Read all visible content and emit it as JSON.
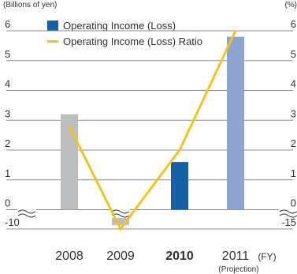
{
  "chart_data": {
    "type": "bar+line",
    "y_left_unit": "(Billions of yen)",
    "y_right_unit": "(%)",
    "x_unit": "(FY)",
    "categories": [
      "2008",
      "2009",
      "2010",
      "2011"
    ],
    "category_notes": [
      "",
      "",
      "",
      "(Projection)"
    ],
    "highlight_category": "2010",
    "y_left_ticks": [
      "6",
      "5",
      "4",
      "3",
      "2",
      "1",
      "0",
      "-10"
    ],
    "y_right_ticks": [
      "6",
      "5",
      "4",
      "3",
      "2",
      "1",
      "0",
      "-15"
    ],
    "series": [
      {
        "name": "Operating Income (Loss)",
        "type": "bar",
        "axis": "left",
        "values": [
          3.2,
          -8.0,
          1.6,
          5.8
        ],
        "colors": [
          "#bcbec0",
          "#bcbec0",
          "#1560a5",
          "#8ea3cf"
        ]
      },
      {
        "name": "Operating Income (Loss) Ratio",
        "type": "line",
        "axis": "right",
        "values": [
          2.8,
          -15.0,
          2.0,
          6.0
        ],
        "color": "#f7c21e"
      }
    ],
    "legend_colors": {
      "bar": "#1560a5",
      "line": "#f7c21e"
    },
    "axis_break": true
  }
}
